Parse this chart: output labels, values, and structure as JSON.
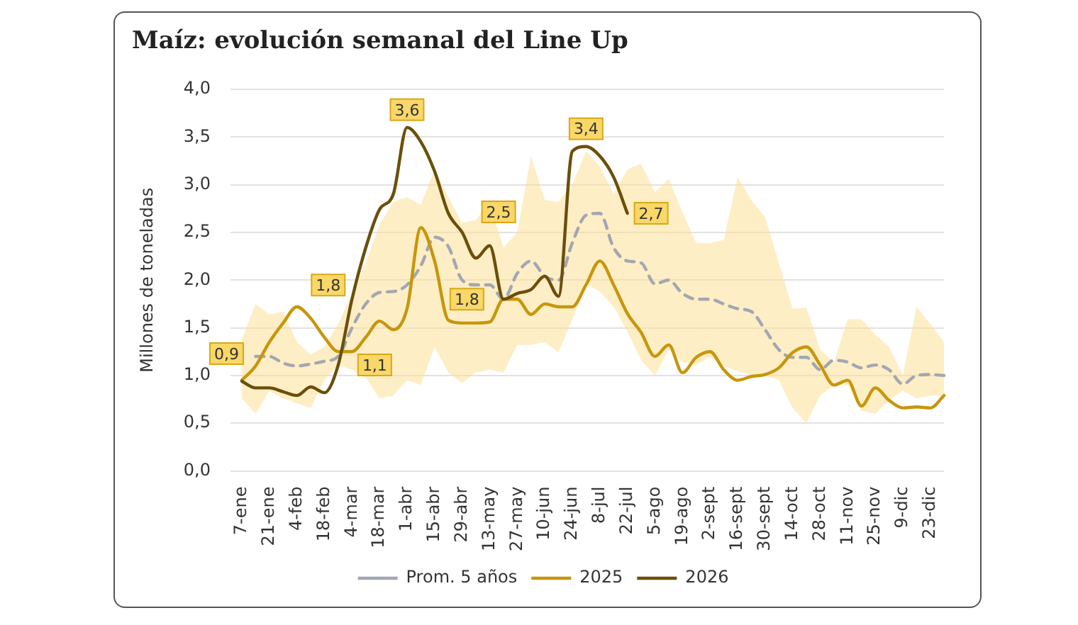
{
  "chart_data": {
    "type": "line",
    "title": "Maíz: evolución semanal del Line Up",
    "ylabel": "Millones de toneladas",
    "categories": [
      "7-ene",
      null,
      "21-ene",
      null,
      "4-feb",
      null,
      "18-feb",
      null,
      "4-mar",
      null,
      "18-mar",
      null,
      "1-abr",
      null,
      "15-abr",
      null,
      "29-abr",
      null,
      "13-may",
      null,
      "27-may",
      null,
      "10-jun",
      null,
      "24-jun",
      null,
      "8-jul",
      null,
      "22-jul",
      null,
      "5-ago",
      null,
      "19-ago",
      null,
      "2-sept",
      null,
      "16-sept",
      null,
      "30-sept",
      null,
      "14-oct",
      null,
      "28-oct",
      null,
      "11-nov",
      null,
      "25-nov",
      null,
      "9-dic",
      null,
      "23-dic",
      null
    ],
    "series": [
      {
        "name": "Prom. 5 años",
        "color": "#a3a7b3",
        "line_style": "dashed",
        "values": [
          null,
          1.2,
          1.2,
          1.13,
          1.1,
          1.12,
          1.15,
          1.2,
          1.5,
          1.75,
          1.87,
          1.88,
          1.95,
          2.15,
          2.45,
          2.35,
          2.0,
          1.95,
          1.95,
          1.8,
          2.07,
          2.2,
          2.04,
          2.0,
          2.39,
          2.68,
          2.7,
          2.34,
          2.2,
          2.18,
          1.96,
          2.0,
          1.86,
          1.8,
          1.8,
          1.75,
          1.7,
          1.67,
          1.48,
          1.27,
          1.19,
          1.19,
          1.06,
          1.16,
          1.14,
          1.08,
          1.11,
          1.06,
          0.91,
          1.0,
          1.01,
          1.0
        ],
        "lower": [
          0.76,
          0.6,
          0.84,
          0.76,
          0.71,
          0.66,
          0.95,
          1.11,
          1.06,
          0.98,
          0.76,
          0.79,
          0.95,
          0.9,
          1.3,
          1.03,
          0.92,
          1.03,
          1.06,
          1.03,
          1.32,
          1.32,
          1.35,
          1.24,
          1.59,
          1.96,
          1.88,
          1.72,
          1.46,
          1.16,
          1.0,
          1.27,
          1.14,
          1.11,
          1.19,
          1.1,
          1.05,
          1.0,
          1.0,
          0.95,
          0.66,
          0.5,
          0.79,
          0.9,
          0.9,
          0.63,
          0.6,
          0.74,
          0.84,
          0.76,
          0.79,
          0.79
        ],
        "upper": [
          1.38,
          1.75,
          1.64,
          1.67,
          1.35,
          1.22,
          1.3,
          1.54,
          1.86,
          2.18,
          2.58,
          2.82,
          2.87,
          2.79,
          3.16,
          2.87,
          2.6,
          2.63,
          2.82,
          2.34,
          2.5,
          3.3,
          2.84,
          2.82,
          3.0,
          3.35,
          3.19,
          2.9,
          3.16,
          3.22,
          2.92,
          3.06,
          2.71,
          2.39,
          2.39,
          2.42,
          3.08,
          2.84,
          2.66,
          2.18,
          1.7,
          1.71,
          1.27,
          1.14,
          1.59,
          1.59,
          1.43,
          1.3,
          1.0,
          1.72,
          1.54,
          1.35
        ]
      },
      {
        "name": "2025",
        "color": "#c8960c",
        "values": [
          0.95,
          1.1,
          1.35,
          1.55,
          1.72,
          1.6,
          1.4,
          1.25,
          1.25,
          1.4,
          1.57,
          1.48,
          1.7,
          2.55,
          2.2,
          1.58,
          1.55,
          1.55,
          1.56,
          1.8,
          1.8,
          1.64,
          1.75,
          1.72,
          1.72,
          1.95,
          2.2,
          1.95,
          1.65,
          1.45,
          1.2,
          1.32,
          1.03,
          1.19,
          1.25,
          1.06,
          0.95,
          0.99,
          1.01,
          1.08,
          1.24,
          1.3,
          1.11,
          0.9,
          0.95,
          0.68,
          0.87,
          0.74,
          0.66,
          0.67,
          0.66,
          0.79
        ]
      },
      {
        "name": "2026",
        "color": "#6b4f0a",
        "values": [
          0.94,
          0.87,
          0.87,
          0.83,
          0.79,
          0.88,
          0.82,
          1.11,
          1.8,
          2.34,
          2.74,
          2.9,
          3.6,
          3.45,
          3.14,
          2.7,
          2.5,
          2.23,
          2.36,
          1.8,
          1.86,
          1.9,
          2.04,
          1.83,
          3.35,
          3.4,
          3.3,
          3.08,
          2.7,
          null,
          null,
          null,
          null,
          null,
          null,
          null,
          null,
          null,
          null,
          null,
          null,
          null,
          null,
          null,
          null,
          null,
          null,
          null,
          null,
          null,
          null,
          null
        ],
        "value_labels": [
          "0,9",
          null,
          null,
          null,
          null,
          null,
          null,
          "1,1",
          "1,8",
          null,
          null,
          null,
          "3,6",
          null,
          null,
          null,
          "2,5",
          null,
          null,
          "1,8",
          null,
          null,
          null,
          null,
          null,
          "3,4",
          null,
          null,
          "2,7",
          null,
          null,
          null,
          null,
          null,
          null,
          null,
          null,
          null,
          null,
          null,
          null,
          null,
          null,
          null,
          null,
          null,
          null,
          null,
          null,
          null,
          null,
          null
        ]
      }
    ],
    "ylim": [
      0,
      4
    ],
    "yticks": [
      {
        "value": 0,
        "label": "0,0"
      },
      {
        "value": 0.5,
        "label": "0,5"
      },
      {
        "value": 1,
        "label": "1,0"
      },
      {
        "value": 1.5,
        "label": "1,5"
      },
      {
        "value": 2,
        "label": "2,0"
      },
      {
        "value": 2.5,
        "label": "2,5"
      },
      {
        "value": 3,
        "label": "3,0"
      },
      {
        "value": 3.5,
        "label": "3,5"
      },
      {
        "value": 4,
        "label": "4,0"
      }
    ],
    "grid": "y",
    "legend": "bottom",
    "marker": "none"
  }
}
